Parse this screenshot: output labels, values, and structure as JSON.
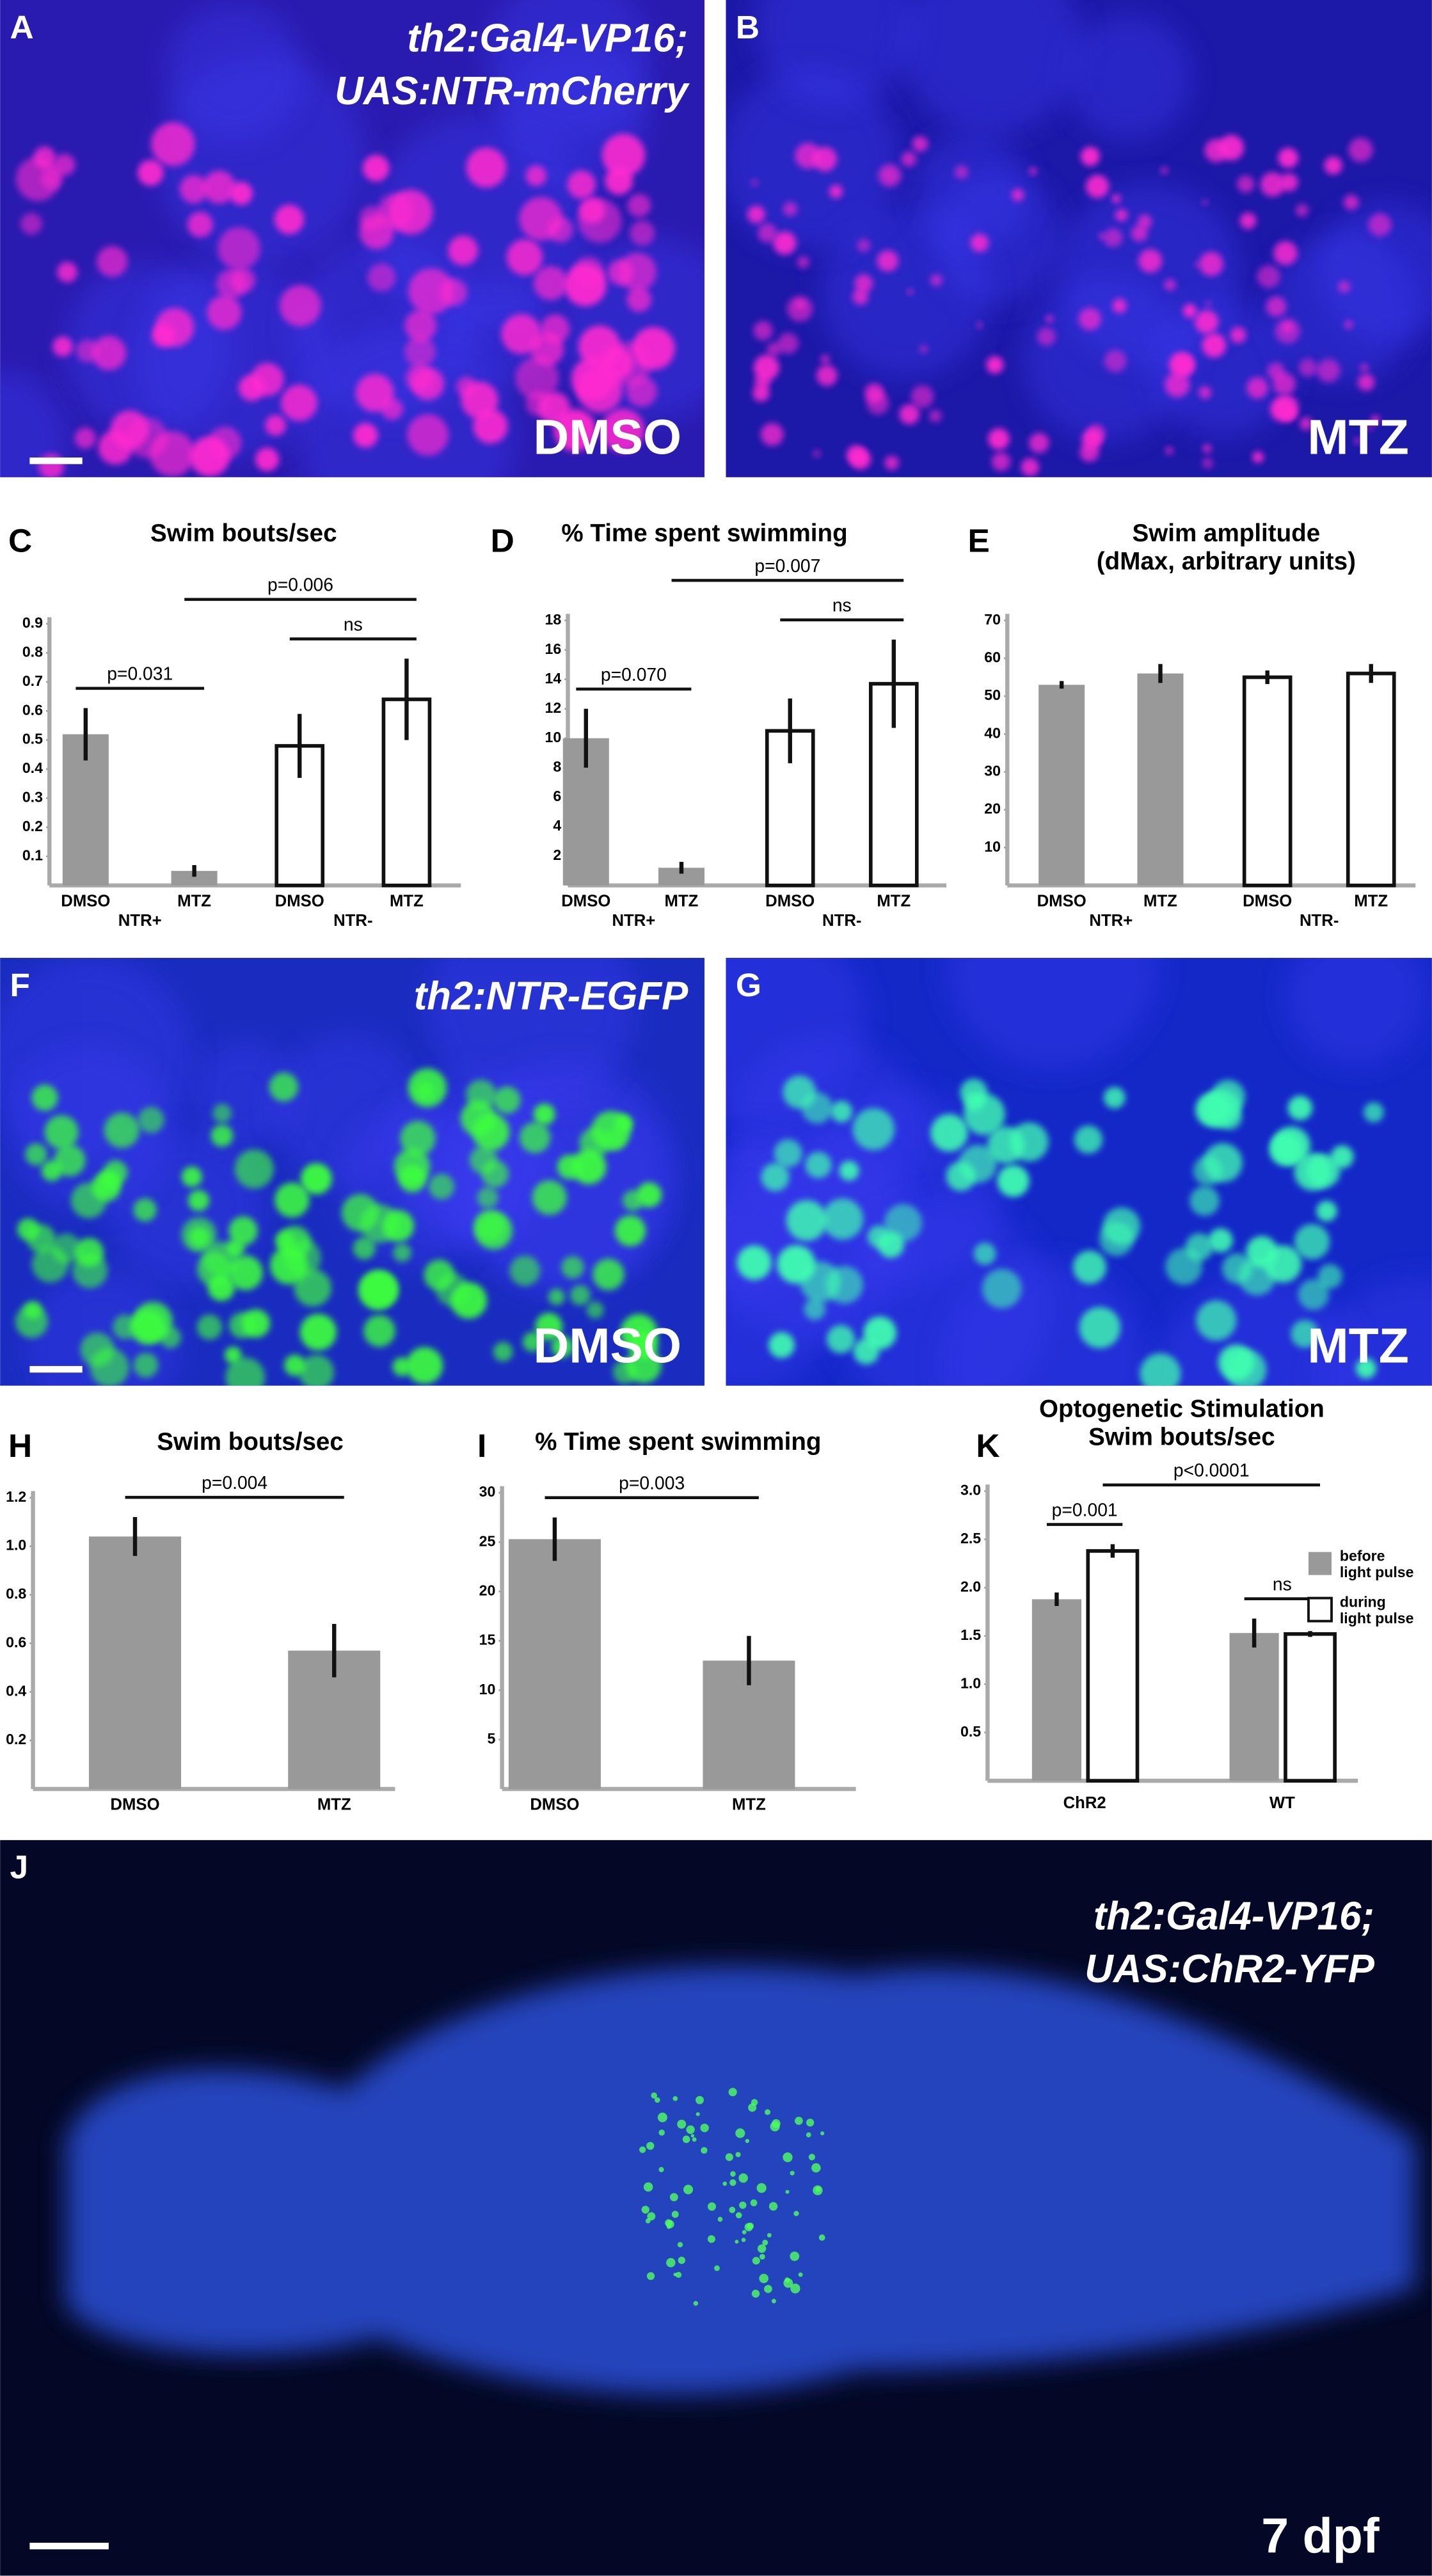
{
  "chart_data": [
    {
      "type": "bar",
      "label": "C",
      "title": "Swim bouts/sec",
      "categories": [
        "DMSO",
        "MTZ",
        "DMSO",
        "MTZ"
      ],
      "groups": [
        "NTR+",
        "NTR-"
      ],
      "values": [
        0.52,
        0.05,
        0.48,
        0.64
      ],
      "errors": [
        0.09,
        0.02,
        0.11,
        0.14
      ],
      "colors": [
        "#999999",
        "#999999",
        "#ffffff",
        "#ffffff"
      ],
      "ylim": [
        0,
        0.9
      ],
      "yticks": [
        0.1,
        0.2,
        0.3,
        0.4,
        0.5,
        0.6,
        0.7,
        0.8,
        0.9
      ],
      "annotations": [
        {
          "text": "p=0.031",
          "between": [
            0,
            1
          ]
        },
        {
          "text": "ns",
          "between": [
            2,
            3
          ]
        },
        {
          "text": "p=0.006",
          "between": [
            1,
            3
          ]
        }
      ]
    },
    {
      "type": "bar",
      "label": "D",
      "title": "% Time spent swimming",
      "categories": [
        "DMSO",
        "MTZ",
        "DMSO",
        "MTZ"
      ],
      "groups": [
        "NTR+",
        "NTR-"
      ],
      "values": [
        10,
        1.2,
        10.5,
        13.7
      ],
      "errors": [
        2,
        0.4,
        2.2,
        3
      ],
      "colors": [
        "#999999",
        "#999999",
        "#ffffff",
        "#ffffff"
      ],
      "ylim": [
        0,
        18
      ],
      "yticks": [
        2,
        4,
        6,
        8,
        10,
        12,
        14,
        16,
        18
      ],
      "annotations": [
        {
          "text": "p=0.070",
          "between": [
            0,
            1
          ]
        },
        {
          "text": "ns",
          "between": [
            2,
            3
          ]
        },
        {
          "text": "p=0.007",
          "between": [
            1,
            3
          ]
        }
      ]
    },
    {
      "type": "bar",
      "label": "E",
      "title": [
        "Swim amplitude",
        "(dMax, arbitrary units)"
      ],
      "categories": [
        "DMSO",
        "MTZ",
        "DMSO",
        "MTZ"
      ],
      "groups": [
        "NTR+",
        "NTR-"
      ],
      "values": [
        53,
        56,
        55,
        56
      ],
      "errors": [
        1,
        2.5,
        1.8,
        2.5
      ],
      "colors": [
        "#999999",
        "#999999",
        "#ffffff",
        "#ffffff"
      ],
      "ylim": [
        0,
        70
      ],
      "yticks": [
        10,
        20,
        30,
        40,
        50,
        60,
        70
      ]
    },
    {
      "type": "bar",
      "label": "H",
      "title": "Swim bouts/sec",
      "categories": [
        "DMSO",
        "MTZ"
      ],
      "values": [
        1.04,
        0.57
      ],
      "errors": [
        0.08,
        0.11
      ],
      "colors": [
        "#999999",
        "#999999"
      ],
      "ylim": [
        0,
        1.2
      ],
      "yticks": [
        0.2,
        0.4,
        0.6,
        0.8,
        {
          "value": 1,
          "label": "1.0"
        },
        1.2
      ],
      "annotations": [
        {
          "text": "p=0.004",
          "between": [
            0,
            1
          ]
        }
      ]
    },
    {
      "type": "bar",
      "label": "I",
      "title": "% Time spent swimming",
      "categories": [
        "DMSO",
        "MTZ"
      ],
      "values": [
        25.3,
        13
      ],
      "errors": [
        2.2,
        2.5
      ],
      "colors": [
        "#999999",
        "#999999"
      ],
      "ylim": [
        0,
        30
      ],
      "yticks": [
        5,
        10,
        15,
        20,
        25,
        30
      ],
      "annotations": [
        {
          "text": "p=0.003",
          "between": [
            0,
            1
          ]
        }
      ]
    },
    {
      "type": "bar",
      "label": "K",
      "title": [
        "Optogenetic Stimulation",
        "Swim bouts/sec"
      ],
      "categories": [
        "ChR2",
        "WT"
      ],
      "series": [
        {
          "name": "before light pulse",
          "color": "#999999",
          "values": [
            1.88,
            1.53
          ],
          "errors": [
            0.07,
            0.15
          ]
        },
        {
          "name": "during light pulse",
          "color": "#ffffff",
          "values": [
            2.38,
            1.52
          ],
          "errors": [
            0.07,
            0.03
          ]
        }
      ],
      "ylim": [
        0,
        3
      ],
      "yticks": [
        0.5,
        {
          "value": 1,
          "label": "1.0"
        },
        1.5,
        {
          "value": 2,
          "label": "2.0"
        },
        2.5,
        {
          "value": 3,
          "label": "3.0"
        }
      ],
      "annotations": [
        {
          "text": "p=0.001",
          "between": [
            0,
            1
          ]
        },
        {
          "text": "ns",
          "between": [
            2,
            3
          ]
        },
        {
          "text": "p<0.0001",
          "between": [
            1,
            3
          ]
        }
      ]
    }
  ],
  "images": [
    {
      "label": "A",
      "caption": [
        "th2:Gal4-VP16;",
        "UAS:NTR-mCherry"
      ],
      "condition": "DMSO"
    },
    {
      "label": "B",
      "condition": "MTZ"
    },
    {
      "label": "F",
      "caption": [
        "th2:NTR-EGFP"
      ],
      "condition": "DMSO"
    },
    {
      "label": "G",
      "condition": "MTZ"
    },
    {
      "label": "J",
      "caption": [
        "th2:Gal4-VP16;",
        "UAS:ChR2-YFP"
      ],
      "condition": "7 dpf"
    }
  ]
}
